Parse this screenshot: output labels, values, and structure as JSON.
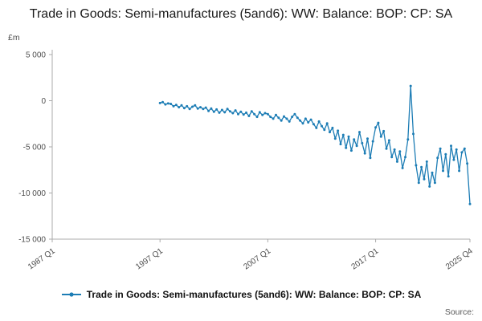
{
  "title": "Trade in Goods: Semi-manufactures (5and6): WW: Balance: BOP: CP: SA",
  "legend_label": "Trade in Goods: Semi-manufactures (5and6): WW: Balance: BOP: CP: SA",
  "source_label": "Source:",
  "colors": {
    "line": "#1d7db5",
    "axis": "#ababab",
    "tick_text": "#4d4d4d"
  },
  "chart_data": {
    "type": "line",
    "title": "Trade in Goods: Semi-manufactures (5and6): WW: Balance: BOP: CP: SA",
    "xlabel": "",
    "ylabel": "£m",
    "ylim": [
      -15000,
      5000
    ],
    "grid": false,
    "legend_position": "bottom",
    "y_ticks": [
      5000,
      0,
      -5000,
      -10000,
      -15000
    ],
    "y_tick_labels": [
      "5 000",
      "0",
      "-5 000",
      "-10 000",
      "-15 000"
    ],
    "x_ticks": [
      "1987 Q1",
      "1997 Q1",
      "2007 Q1",
      "2017 Q1",
      "2025 Q4"
    ],
    "x_tick_indices": [
      0,
      40,
      80,
      120,
      155
    ],
    "x_axis_start": "1987 Q1",
    "x_axis_end": "2025 Q4",
    "x_total_quarters": 156,
    "series": [
      {
        "name": "Trade in Goods: Semi-manufactures (5and6): WW: Balance: BOP: CP: SA",
        "frequency": "quarterly",
        "start": "1997 Q1",
        "start_index": 40,
        "values": [
          -250,
          -150,
          -400,
          -300,
          -350,
          -600,
          -450,
          -700,
          -500,
          -800,
          -600,
          -900,
          -650,
          -500,
          -850,
          -700,
          -900,
          -750,
          -1100,
          -850,
          -1200,
          -950,
          -1300,
          -1000,
          -1250,
          -900,
          -1150,
          -1350,
          -1050,
          -1450,
          -1200,
          -1500,
          -1300,
          -1650,
          -1150,
          -1450,
          -1750,
          -1250,
          -1550,
          -1350,
          -1450,
          -1750,
          -1950,
          -1550,
          -1850,
          -2150,
          -1700,
          -1950,
          -2250,
          -1750,
          -1450,
          -1850,
          -2150,
          -2450,
          -1950,
          -2350,
          -2050,
          -2550,
          -2950,
          -2250,
          -2750,
          -3150,
          -2450,
          -3400,
          -2950,
          -4100,
          -3250,
          -4700,
          -3700,
          -5100,
          -3900,
          -5400,
          -4200,
          -4900,
          -3400,
          -4600,
          -5700,
          -4100,
          -6200,
          -4400,
          -2900,
          -2400,
          -3900,
          -3300,
          -5200,
          -4300,
          -6100,
          -5300,
          -6600,
          -5500,
          -7300,
          -6100,
          -4200,
          1600,
          -3600,
          -7000,
          -8900,
          -7200,
          -8500,
          -6600,
          -9300,
          -7800,
          -8900,
          -6200,
          -5200,
          -7600,
          -5800,
          -8200,
          -4900,
          -6400,
          -5300,
          -7600,
          -5600,
          -5200,
          -6800,
          -11200
        ]
      }
    ]
  }
}
